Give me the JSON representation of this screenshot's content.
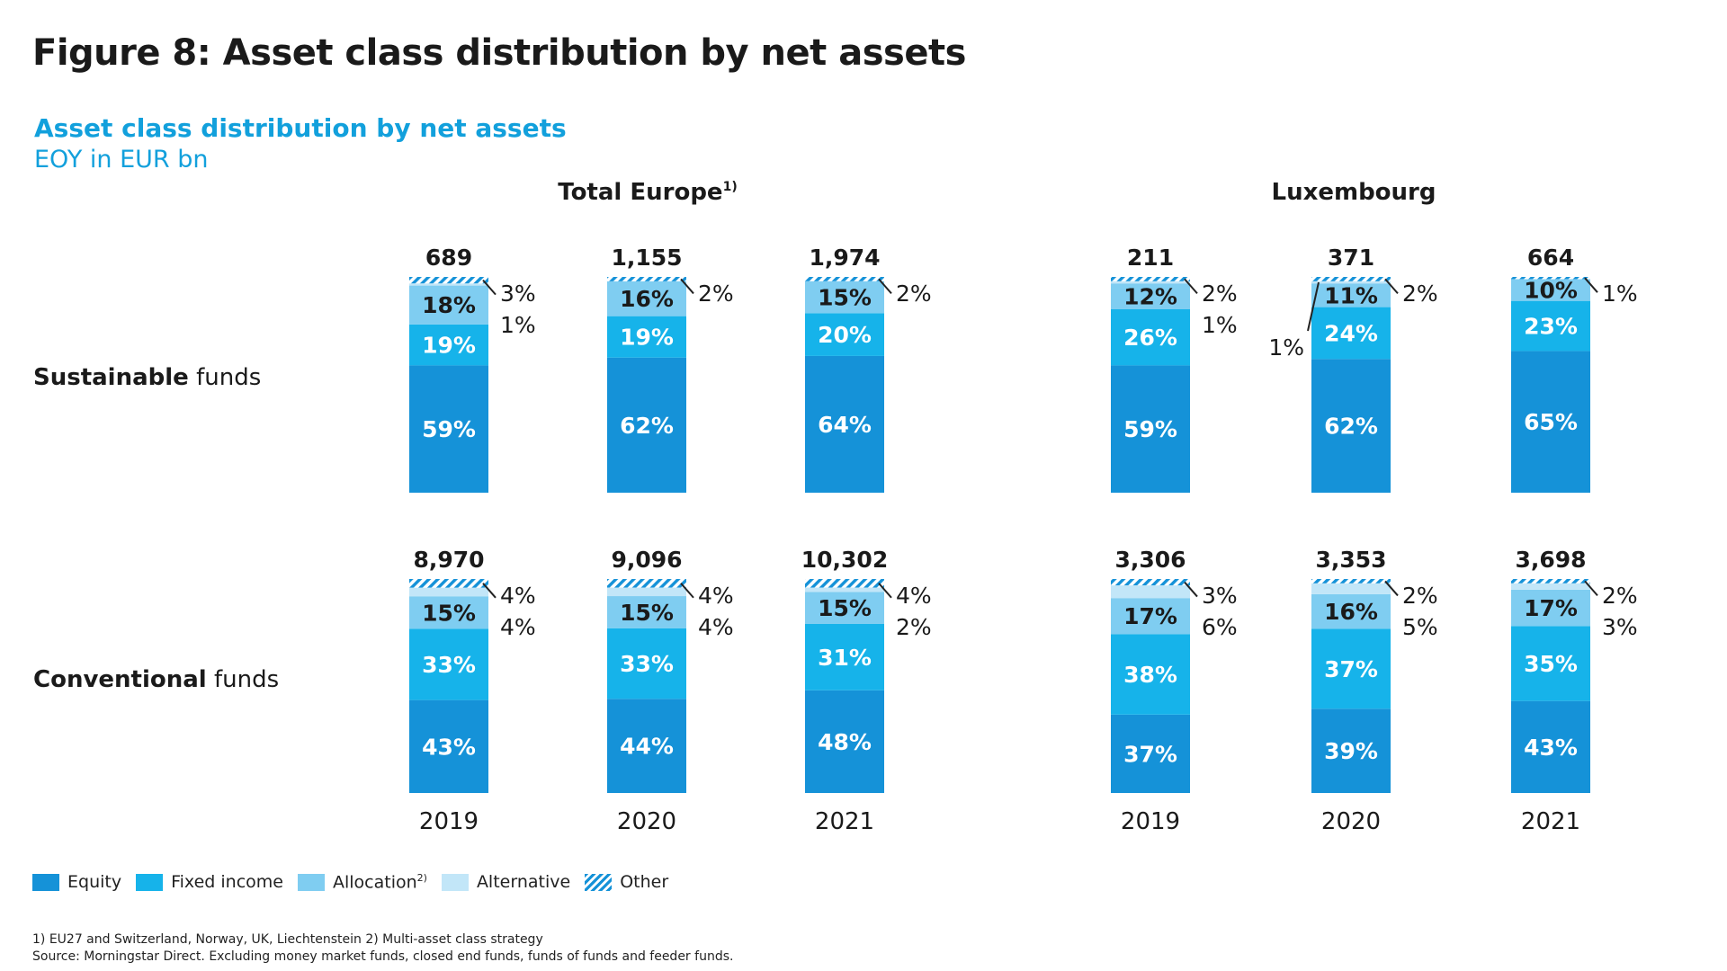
{
  "title": "Figure 8: Asset class distribution by net assets",
  "subtitle": "Asset class distribution by net assets",
  "unit": "EOY in EUR bn",
  "legend": {
    "equity": "Equity",
    "fixed_income": "Fixed income",
    "allocation": "Allocation",
    "allocation_sup": "2)",
    "alternative": "Alternative",
    "other": "Other"
  },
  "notes": {
    "footnote": "1) EU27 and Switzerland, Norway, UK, Liechtenstein  2) Multi-asset class strategy",
    "source": "Source: Morningstar Direct. Excluding money market funds, closed end funds, funds of funds and feeder funds."
  },
  "colors": {
    "equity": "#1592d8",
    "fixed_income": "#16b3ea",
    "allocation": "#7fcdf1",
    "alternative": "#c2e6f8",
    "other": "#1592d8",
    "accent": "#12a0dc"
  },
  "chart_data": {
    "type": "bar",
    "stacked": "100%",
    "segment_order": [
      "Equity",
      "Fixed income",
      "Allocation",
      "Alternative",
      "Other"
    ],
    "regions": [
      {
        "name": "Total Europe",
        "name_sup": "1)"
      },
      {
        "name": "Luxembourg",
        "name_sup": ""
      }
    ],
    "rows": [
      {
        "prefix": "Sustainable",
        "suffix": " funds"
      },
      {
        "prefix": "Conventional",
        "suffix": " funds"
      }
    ],
    "years": [
      "2019",
      "2020",
      "2021"
    ],
    "panels": [
      {
        "region": "Total Europe",
        "fund_type": "Sustainable",
        "bars": [
          {
            "year": "2019",
            "total": "689",
            "equity": 59,
            "fixed_income": 19,
            "allocation": 18,
            "alternative": 1,
            "other": 3
          },
          {
            "year": "2020",
            "total": "1,155",
            "equity": 62,
            "fixed_income": 19,
            "allocation": 16,
            "alternative": null,
            "other": 2
          },
          {
            "year": "2021",
            "total": "1,974",
            "equity": 64,
            "fixed_income": 20,
            "allocation": 15,
            "alternative": null,
            "other": 2
          }
        ]
      },
      {
        "region": "Luxembourg",
        "fund_type": "Sustainable",
        "bars": [
          {
            "year": "2019",
            "total": "211",
            "equity": 59,
            "fixed_income": 26,
            "allocation": 12,
            "alternative": 1,
            "other": 2
          },
          {
            "year": "2020",
            "total": "371",
            "equity": 62,
            "fixed_income": 24,
            "allocation": 11,
            "alternative": 1,
            "other": 2
          },
          {
            "year": "2021",
            "total": "664",
            "equity": 65,
            "fixed_income": 23,
            "allocation": 10,
            "alternative": null,
            "other": 1
          }
        ]
      },
      {
        "region": "Total Europe",
        "fund_type": "Conventional",
        "bars": [
          {
            "year": "2019",
            "total": "8,970",
            "equity": 43,
            "fixed_income": 33,
            "allocation": 15,
            "alternative": 4,
            "other": 4
          },
          {
            "year": "2020",
            "total": "9,096",
            "equity": 44,
            "fixed_income": 33,
            "allocation": 15,
            "alternative": 4,
            "other": 4
          },
          {
            "year": "2021",
            "total": "10,302",
            "equity": 48,
            "fixed_income": 31,
            "allocation": 15,
            "alternative": 2,
            "other": 4
          }
        ]
      },
      {
        "region": "Luxembourg",
        "fund_type": "Conventional",
        "bars": [
          {
            "year": "2019",
            "total": "3,306",
            "equity": 37,
            "fixed_income": 38,
            "allocation": 17,
            "alternative": 6,
            "other": 3
          },
          {
            "year": "2020",
            "total": "3,353",
            "equity": 39,
            "fixed_income": 37,
            "allocation": 16,
            "alternative": 5,
            "other": 2
          },
          {
            "year": "2021",
            "total": "3,698",
            "equity": 43,
            "fixed_income": 35,
            "allocation": 17,
            "alternative": 3,
            "other": 2
          }
        ]
      }
    ]
  }
}
